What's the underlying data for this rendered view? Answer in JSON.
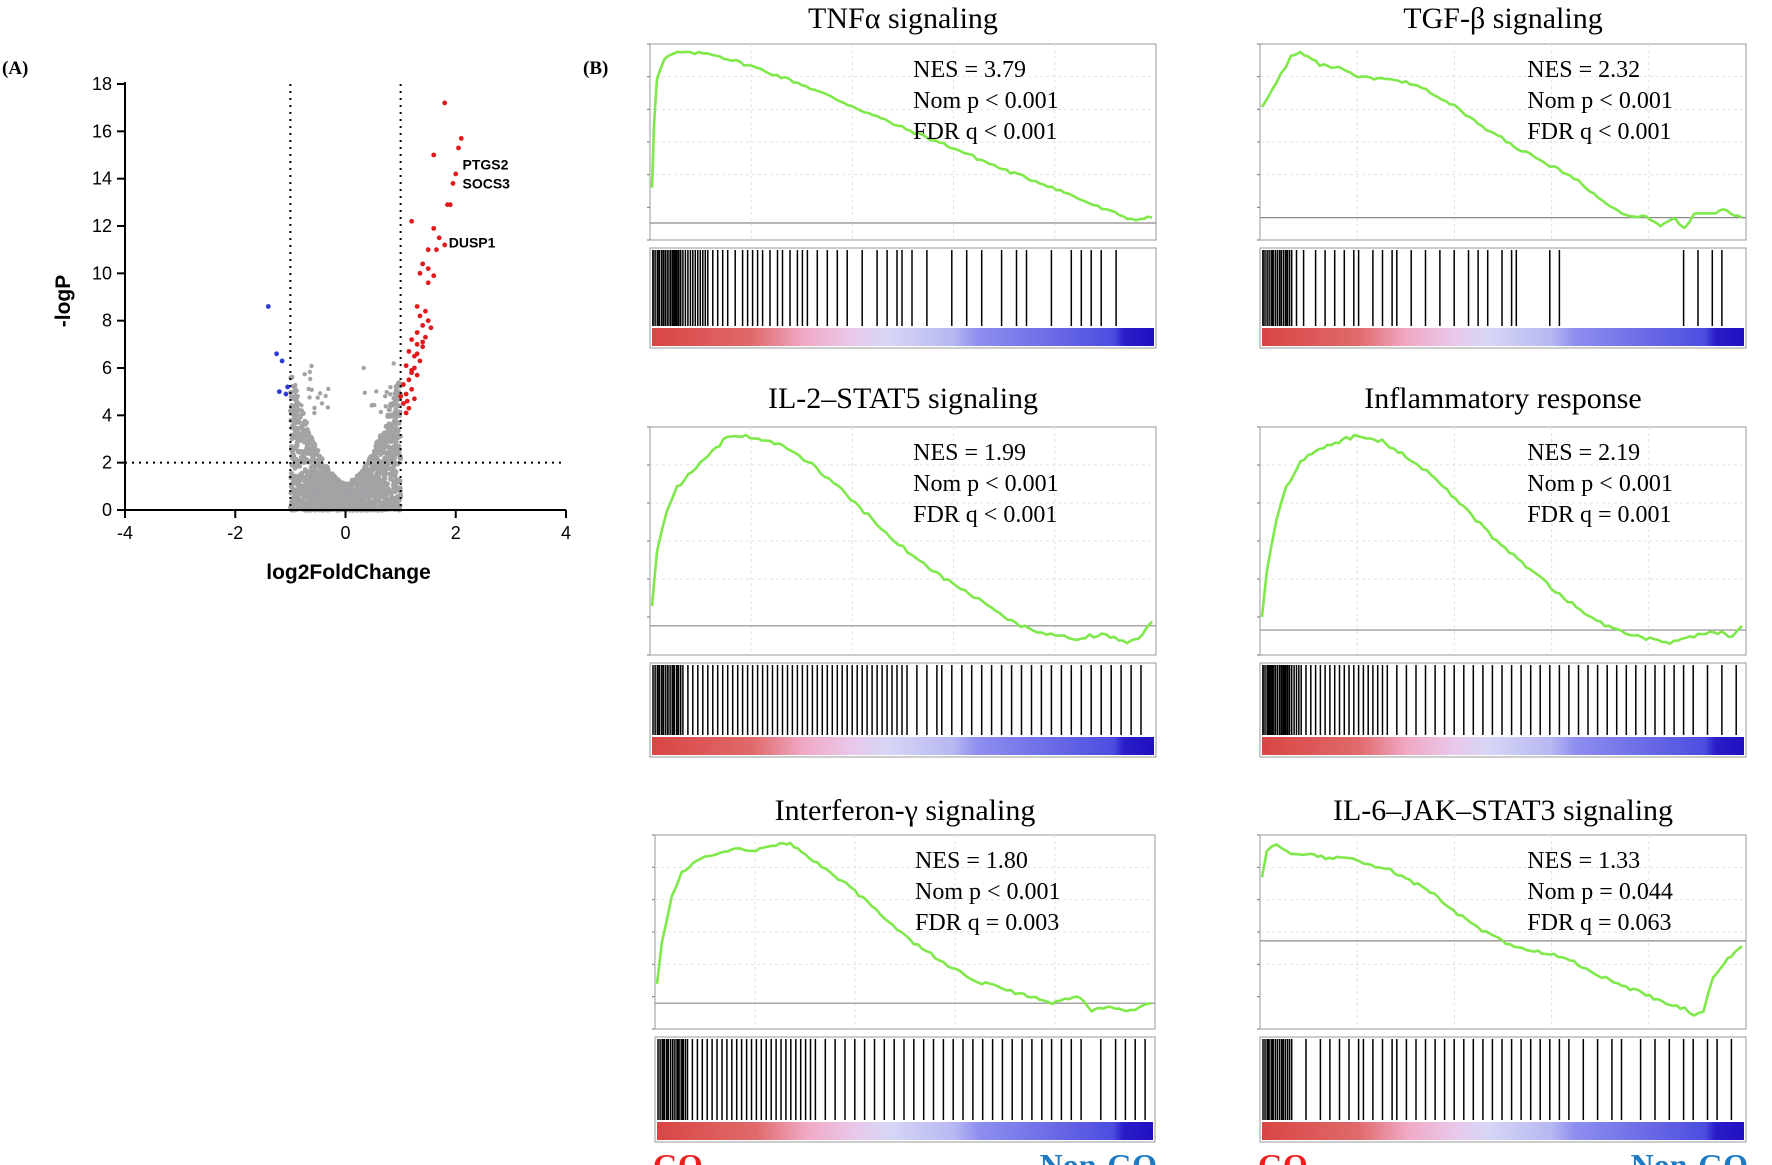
{
  "panel_labels": {
    "a": "(A)",
    "b": "(B)"
  },
  "colors": {
    "up": "#e31a1c",
    "down": "#2b3bd6",
    "ns": "#a3a3a6",
    "curve": "#7fe84a",
    "go": "#e8201e",
    "nongo": "#1f7ac4"
  },
  "chart_data": [
    {
      "type": "scatter",
      "id": "volcano",
      "xlabel": "log2FoldChange",
      "ylabel": "-logP",
      "xlim": [
        -4,
        4
      ],
      "ylim": [
        0,
        18
      ],
      "xticks": [
        -4,
        -2,
        0,
        2,
        4
      ],
      "yticks": [
        0,
        2,
        4,
        6,
        8,
        10,
        12,
        14,
        16,
        18
      ],
      "thresholds": {
        "fc": [
          -1,
          1
        ],
        "p": 2
      },
      "gene_labels": [
        {
          "gene": "PTGS2",
          "x": 2.05,
          "y": 14.6
        },
        {
          "gene": "SOCS3",
          "x": 2.05,
          "y": 13.8
        },
        {
          "gene": "DUSP1",
          "x": 1.8,
          "y": 11.3
        }
      ],
      "series": [
        {
          "name": "up-regulated",
          "points": [
            [
              1.8,
              17.2
            ],
            [
              2.1,
              15.7
            ],
            [
              2.05,
              15.3
            ],
            [
              1.6,
              15.0
            ],
            [
              2.0,
              14.2
            ],
            [
              1.95,
              13.8
            ],
            [
              1.9,
              12.9
            ],
            [
              1.85,
              12.9
            ],
            [
              1.2,
              12.2
            ],
            [
              1.6,
              11.9
            ],
            [
              1.7,
              11.5
            ],
            [
              1.8,
              11.2
            ],
            [
              1.5,
              11.0
            ],
            [
              1.65,
              11.0
            ],
            [
              1.4,
              10.4
            ],
            [
              1.5,
              10.2
            ],
            [
              1.35,
              10.0
            ],
            [
              1.6,
              9.9
            ],
            [
              1.5,
              9.6
            ],
            [
              1.3,
              8.6
            ],
            [
              1.45,
              8.4
            ],
            [
              1.35,
              8.2
            ],
            [
              1.5,
              8.0
            ],
            [
              1.4,
              7.8
            ],
            [
              1.55,
              7.7
            ],
            [
              1.3,
              7.5
            ],
            [
              1.45,
              7.3
            ],
            [
              1.2,
              7.2
            ],
            [
              1.3,
              7.0
            ],
            [
              1.4,
              6.9
            ],
            [
              1.15,
              6.7
            ],
            [
              1.25,
              6.5
            ],
            [
              1.35,
              6.3
            ],
            [
              1.1,
              6.1
            ],
            [
              1.2,
              5.9
            ],
            [
              1.3,
              5.7
            ],
            [
              1.15,
              5.5
            ],
            [
              1.05,
              5.3
            ],
            [
              1.2,
              5.1
            ],
            [
              1.1,
              4.9
            ],
            [
              1.25,
              4.7
            ],
            [
              1.05,
              4.5
            ],
            [
              1.15,
              4.3
            ],
            [
              1.1,
              4.1
            ],
            [
              1.0,
              4.8
            ],
            [
              1.2,
              5.8
            ],
            [
              1.3,
              6.6
            ],
            [
              1.4,
              7.1
            ],
            [
              1.25,
              6.0
            ],
            [
              1.12,
              4.6
            ]
          ]
        },
        {
          "name": "down-regulated",
          "points": [
            [
              -1.4,
              8.6
            ],
            [
              -1.25,
              6.6
            ],
            [
              -1.15,
              6.3
            ],
            [
              -1.2,
              5.0
            ],
            [
              -1.05,
              5.2
            ],
            [
              -1.08,
              4.9
            ]
          ]
        }
      ]
    },
    {
      "type": "line",
      "id": "gsea-tnfa",
      "title": "TNFα signaling",
      "stats": [
        "NES = 3.79",
        "Nom p < 0.001",
        "FDR q < 0.001"
      ],
      "zero": 0.05,
      "curve": [
        [
          0,
          0.25
        ],
        [
          0.004,
          0.6
        ],
        [
          0.01,
          0.85
        ],
        [
          0.025,
          0.96
        ],
        [
          0.05,
          1.0
        ],
        [
          0.12,
          0.99
        ],
        [
          0.2,
          0.92
        ],
        [
          0.3,
          0.82
        ],
        [
          0.4,
          0.7
        ],
        [
          0.5,
          0.58
        ],
        [
          0.6,
          0.47
        ],
        [
          0.7,
          0.35
        ],
        [
          0.8,
          0.25
        ],
        [
          0.9,
          0.13
        ],
        [
          0.96,
          0.07
        ],
        [
          1.0,
          0.08
        ]
      ],
      "hits": [
        0.0,
        0.01,
        0.018,
        0.025,
        0.03,
        0.035,
        0.04,
        0.045,
        0.05,
        0.055,
        0.06,
        0.065,
        0.07,
        0.075,
        0.08,
        0.085,
        0.09,
        0.095,
        0.1,
        0.105,
        0.11,
        0.12,
        0.13,
        0.14,
        0.15,
        0.165,
        0.18,
        0.19,
        0.2,
        0.21,
        0.22,
        0.235,
        0.25,
        0.26,
        0.275,
        0.29,
        0.3,
        0.31,
        0.33,
        0.35,
        0.37,
        0.39,
        0.42,
        0.45,
        0.47,
        0.49,
        0.5,
        0.52,
        0.55,
        0.6,
        0.63,
        0.66,
        0.7,
        0.73,
        0.75,
        0.8,
        0.84,
        0.86,
        0.88,
        0.9,
        0.93
      ],
      "footer": {
        "left": "",
        "right": ""
      }
    },
    {
      "type": "line",
      "id": "gsea-tgfb",
      "title": "TGF-β signaling",
      "stats": [
        "NES = 2.32",
        "Nom p < 0.001",
        "FDR q < 0.001"
      ],
      "zero": 0.08,
      "curve": [
        [
          0,
          0.7
        ],
        [
          0.02,
          0.78
        ],
        [
          0.04,
          0.88
        ],
        [
          0.06,
          0.97
        ],
        [
          0.08,
          1.0
        ],
        [
          0.12,
          0.93
        ],
        [
          0.16,
          0.91
        ],
        [
          0.2,
          0.86
        ],
        [
          0.25,
          0.85
        ],
        [
          0.3,
          0.83
        ],
        [
          0.35,
          0.78
        ],
        [
          0.4,
          0.7
        ],
        [
          0.45,
          0.6
        ],
        [
          0.5,
          0.52
        ],
        [
          0.55,
          0.44
        ],
        [
          0.6,
          0.37
        ],
        [
          0.65,
          0.3
        ],
        [
          0.7,
          0.2
        ],
        [
          0.75,
          0.1
        ],
        [
          0.8,
          0.08
        ],
        [
          0.83,
          0.03
        ],
        [
          0.86,
          0.08
        ],
        [
          0.88,
          0.02
        ],
        [
          0.9,
          0.1
        ],
        [
          0.93,
          0.1
        ],
        [
          0.96,
          0.12
        ],
        [
          1.0,
          0.08
        ]
      ],
      "hits": [
        0.0,
        0.02,
        0.035,
        0.05,
        0.06,
        0.07,
        0.085,
        0.11,
        0.13,
        0.15,
        0.17,
        0.19,
        0.2,
        0.23,
        0.25,
        0.27,
        0.28,
        0.31,
        0.34,
        0.37,
        0.4,
        0.43,
        0.45,
        0.47,
        0.5,
        0.52,
        0.53,
        0.6,
        0.62,
        0.88,
        0.91,
        0.94,
        0.96
      ],
      "footer": {
        "left": "",
        "right": ""
      }
    },
    {
      "type": "line",
      "id": "gsea-il2",
      "title": "IL-2–STAT5 signaling",
      "stats": [
        "NES = 1.99",
        "Nom p < 0.001",
        "FDR q < 0.001"
      ],
      "zero": 0.1,
      "curve": [
        [
          0,
          0.2
        ],
        [
          0.01,
          0.45
        ],
        [
          0.03,
          0.65
        ],
        [
          0.05,
          0.75
        ],
        [
          0.08,
          0.83
        ],
        [
          0.12,
          0.92
        ],
        [
          0.15,
          0.99
        ],
        [
          0.18,
          1.0
        ],
        [
          0.22,
          0.98
        ],
        [
          0.27,
          0.94
        ],
        [
          0.32,
          0.86
        ],
        [
          0.38,
          0.74
        ],
        [
          0.45,
          0.58
        ],
        [
          0.52,
          0.43
        ],
        [
          0.6,
          0.3
        ],
        [
          0.67,
          0.2
        ],
        [
          0.72,
          0.12
        ],
        [
          0.78,
          0.06
        ],
        [
          0.85,
          0.04
        ],
        [
          0.9,
          0.06
        ],
        [
          0.95,
          0.02
        ],
        [
          0.98,
          0.05
        ],
        [
          1.0,
          0.12
        ]
      ],
      "hits": [
        0.01,
        0.02,
        0.03,
        0.04,
        0.05,
        0.06,
        0.07,
        0.08,
        0.09,
        0.1,
        0.11,
        0.12,
        0.13,
        0.14,
        0.15,
        0.16,
        0.17,
        0.18,
        0.19,
        0.2,
        0.21,
        0.22,
        0.23,
        0.24,
        0.25,
        0.26,
        0.27,
        0.28,
        0.29,
        0.3,
        0.31,
        0.32,
        0.33,
        0.34,
        0.35,
        0.36,
        0.37,
        0.38,
        0.39,
        0.4,
        0.41,
        0.42,
        0.43,
        0.44,
        0.45,
        0.46,
        0.47,
        0.48,
        0.49,
        0.5,
        0.51,
        0.53,
        0.55,
        0.57,
        0.58,
        0.6,
        0.62,
        0.64,
        0.66,
        0.68,
        0.7,
        0.72,
        0.74,
        0.76,
        0.78,
        0.8,
        0.82,
        0.84,
        0.86,
        0.88,
        0.9,
        0.92,
        0.94,
        0.96,
        0.98
      ],
      "footer": {
        "left": "",
        "right": ""
      }
    },
    {
      "type": "line",
      "id": "gsea-inflam",
      "title": "Inflammatory response",
      "stats": [
        "NES = 2.19",
        "Nom p < 0.001",
        "FDR q = 0.001"
      ],
      "zero": 0.08,
      "curve": [
        [
          0,
          0.15
        ],
        [
          0.01,
          0.35
        ],
        [
          0.03,
          0.6
        ],
        [
          0.05,
          0.75
        ],
        [
          0.08,
          0.88
        ],
        [
          0.12,
          0.93
        ],
        [
          0.16,
          0.97
        ],
        [
          0.2,
          1.0
        ],
        [
          0.25,
          0.97
        ],
        [
          0.3,
          0.9
        ],
        [
          0.36,
          0.8
        ],
        [
          0.42,
          0.66
        ],
        [
          0.48,
          0.52
        ],
        [
          0.55,
          0.38
        ],
        [
          0.62,
          0.25
        ],
        [
          0.68,
          0.14
        ],
        [
          0.74,
          0.08
        ],
        [
          0.8,
          0.04
        ],
        [
          0.85,
          0.02
        ],
        [
          0.9,
          0.05
        ],
        [
          0.95,
          0.07
        ],
        [
          0.98,
          0.05
        ],
        [
          1.0,
          0.1
        ]
      ],
      "hits": [
        0.0,
        0.01,
        0.015,
        0.02,
        0.025,
        0.03,
        0.035,
        0.04,
        0.045,
        0.05,
        0.055,
        0.06,
        0.065,
        0.07,
        0.075,
        0.08,
        0.09,
        0.1,
        0.11,
        0.12,
        0.13,
        0.14,
        0.15,
        0.16,
        0.17,
        0.18,
        0.19,
        0.2,
        0.21,
        0.22,
        0.23,
        0.24,
        0.25,
        0.26,
        0.28,
        0.3,
        0.32,
        0.34,
        0.36,
        0.38,
        0.4,
        0.42,
        0.44,
        0.46,
        0.48,
        0.5,
        0.52,
        0.54,
        0.56,
        0.58,
        0.6,
        0.62,
        0.64,
        0.66,
        0.68,
        0.7,
        0.72,
        0.74,
        0.76,
        0.78,
        0.8,
        0.82,
        0.84,
        0.86,
        0.88,
        0.9,
        0.93,
        0.96,
        0.99
      ],
      "footer": {
        "left": "",
        "right": ""
      }
    },
    {
      "type": "line",
      "id": "gsea-ifng",
      "title": "Interferon-γ signaling",
      "stats": [
        "NES = 1.80",
        "Nom p < 0.001",
        "FDR q = 0.003"
      ],
      "zero": 0.1,
      "curve": [
        [
          0,
          0.2
        ],
        [
          0.01,
          0.45
        ],
        [
          0.03,
          0.7
        ],
        [
          0.05,
          0.83
        ],
        [
          0.08,
          0.9
        ],
        [
          0.12,
          0.94
        ],
        [
          0.16,
          0.97
        ],
        [
          0.2,
          0.96
        ],
        [
          0.24,
          0.99
        ],
        [
          0.27,
          1.0
        ],
        [
          0.3,
          0.93
        ],
        [
          0.35,
          0.84
        ],
        [
          0.4,
          0.73
        ],
        [
          0.46,
          0.58
        ],
        [
          0.52,
          0.44
        ],
        [
          0.58,
          0.33
        ],
        [
          0.64,
          0.23
        ],
        [
          0.7,
          0.18
        ],
        [
          0.75,
          0.14
        ],
        [
          0.8,
          0.1
        ],
        [
          0.85,
          0.14
        ],
        [
          0.88,
          0.06
        ],
        [
          0.92,
          0.08
        ],
        [
          0.96,
          0.06
        ],
        [
          1.0,
          0.1
        ]
      ],
      "hits": [
        0.01,
        0.02,
        0.03,
        0.04,
        0.05,
        0.06,
        0.07,
        0.08,
        0.09,
        0.1,
        0.11,
        0.12,
        0.13,
        0.14,
        0.15,
        0.16,
        0.17,
        0.18,
        0.19,
        0.2,
        0.21,
        0.22,
        0.23,
        0.24,
        0.25,
        0.26,
        0.27,
        0.28,
        0.29,
        0.3,
        0.31,
        0.32,
        0.34,
        0.36,
        0.38,
        0.4,
        0.42,
        0.44,
        0.46,
        0.48,
        0.5,
        0.52,
        0.54,
        0.56,
        0.58,
        0.6,
        0.62,
        0.64,
        0.66,
        0.68,
        0.7,
        0.72,
        0.74,
        0.76,
        0.78,
        0.8,
        0.82,
        0.84,
        0.86,
        0.9,
        0.93,
        0.95,
        0.97,
        0.99
      ],
      "footer": {
        "left": "GO",
        "right": "Non-GO"
      }
    },
    {
      "type": "line",
      "id": "gsea-il6",
      "title": "IL-6–JAK–STAT3 signaling",
      "stats": [
        "NES = 1.33",
        "Nom p = 0.044",
        "FDR q = 0.063"
      ],
      "zero": 0.45,
      "curve": [
        [
          0,
          0.8
        ],
        [
          0.01,
          0.95
        ],
        [
          0.03,
          1.0
        ],
        [
          0.06,
          0.93
        ],
        [
          0.1,
          0.94
        ],
        [
          0.14,
          0.91
        ],
        [
          0.18,
          0.92
        ],
        [
          0.22,
          0.88
        ],
        [
          0.26,
          0.86
        ],
        [
          0.3,
          0.8
        ],
        [
          0.35,
          0.73
        ],
        [
          0.4,
          0.62
        ],
        [
          0.45,
          0.52
        ],
        [
          0.5,
          0.45
        ],
        [
          0.55,
          0.4
        ],
        [
          0.6,
          0.38
        ],
        [
          0.65,
          0.33
        ],
        [
          0.7,
          0.26
        ],
        [
          0.75,
          0.2
        ],
        [
          0.8,
          0.15
        ],
        [
          0.84,
          0.1
        ],
        [
          0.88,
          0.07
        ],
        [
          0.9,
          0.04
        ],
        [
          0.92,
          0.06
        ],
        [
          0.94,
          0.25
        ],
        [
          0.97,
          0.35
        ],
        [
          1.0,
          0.42
        ]
      ],
      "hits": [
        0.01,
        0.02,
        0.04,
        0.06,
        0.09,
        0.12,
        0.14,
        0.16,
        0.18,
        0.2,
        0.21,
        0.23,
        0.25,
        0.27,
        0.28,
        0.3,
        0.32,
        0.34,
        0.36,
        0.38,
        0.4,
        0.42,
        0.44,
        0.46,
        0.48,
        0.5,
        0.52,
        0.54,
        0.56,
        0.58,
        0.6,
        0.62,
        0.64,
        0.67,
        0.7,
        0.73,
        0.75,
        0.79,
        0.82,
        0.85,
        0.88,
        0.9,
        0.93,
        0.95,
        0.98
      ],
      "footer": {
        "left": "GO",
        "right": "Non-GO"
      }
    }
  ]
}
